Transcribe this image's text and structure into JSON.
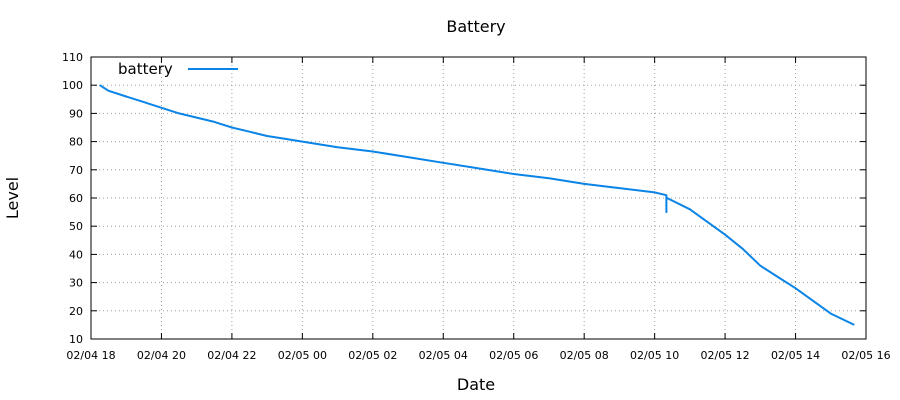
{
  "chart_data": {
    "type": "line",
    "title": "Battery",
    "xlabel": "Date",
    "ylabel": "Level",
    "x_tick_labels": [
      "02/04 18",
      "02/04 20",
      "02/04 22",
      "02/05 00",
      "02/05 02",
      "02/05 04",
      "02/05 06",
      "02/05 08",
      "02/05 10",
      "02/05 12",
      "02/05 14",
      "02/05 16"
    ],
    "y_ticks": [
      10,
      20,
      30,
      40,
      50,
      60,
      70,
      80,
      90,
      100,
      110
    ],
    "ylim": [
      10,
      110
    ],
    "xlim": [
      "02/04 18:00",
      "02/05 16:00"
    ],
    "grid": true,
    "legend_position": "top-left",
    "series": [
      {
        "name": "battery",
        "color": "#0a84e6",
        "x": [
          "02/04 18:15",
          "02/04 18:30",
          "02/04 19:00",
          "02/04 19:30",
          "02/04 20:00",
          "02/04 20:30",
          "02/04 21:00",
          "02/04 21:30",
          "02/04 22:00",
          "02/04 22:30",
          "02/04 23:00",
          "02/04 23:30",
          "02/05 00:00",
          "02/05 01:00",
          "02/05 02:00",
          "02/05 03:00",
          "02/05 04:00",
          "02/05 05:00",
          "02/05 06:00",
          "02/05 07:00",
          "02/05 08:00",
          "02/05 09:00",
          "02/05 10:00",
          "02/05 10:20",
          "02/05 10:20",
          "02/05 10:20",
          "02/05 10:21",
          "02/05 11:00",
          "02/05 12:00",
          "02/05 12:30",
          "02/05 13:00",
          "02/05 13:30",
          "02/05 14:00",
          "02/05 14:30",
          "02/05 15:00",
          "02/05 15:40"
        ],
        "values": [
          100,
          98,
          96,
          94,
          92,
          90,
          88.5,
          87,
          85,
          83.5,
          82,
          81,
          80,
          78,
          76.5,
          74.5,
          72.5,
          70.5,
          68.5,
          67,
          65,
          63.5,
          62,
          61,
          55,
          60,
          60,
          56,
          47,
          42,
          36,
          32,
          28,
          23.5,
          19,
          15
        ]
      }
    ]
  }
}
